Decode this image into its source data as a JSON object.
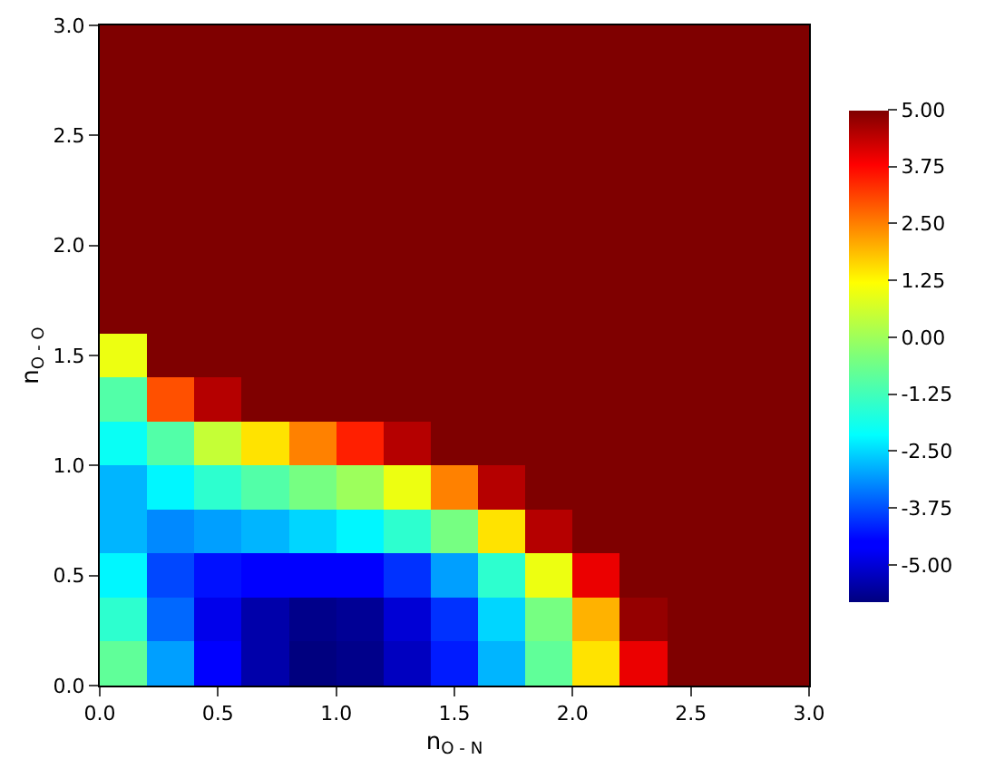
{
  "chart_data": {
    "type": "heatmap",
    "xlabel": "n$_{O - N}$",
    "ylabel": "n$_{O - O}$",
    "x": [
      0.1,
      0.3,
      0.5,
      0.7,
      0.9,
      1.1,
      1.3,
      1.5,
      1.7,
      1.9,
      2.1,
      2.3,
      2.5,
      2.7,
      2.9
    ],
    "y": [
      2.9,
      2.7,
      2.5,
      2.3,
      2.1,
      1.9,
      1.7,
      1.5,
      1.3,
      1.1,
      0.9,
      0.7,
      0.5,
      0.3,
      0.1
    ],
    "cells": [
      [
        5,
        5,
        5,
        5,
        5,
        5,
        5,
        5,
        5,
        5,
        5,
        5,
        5,
        5,
        5
      ],
      [
        5,
        5,
        5,
        5,
        5,
        5,
        5,
        5,
        5,
        5,
        5,
        5,
        5,
        5,
        5
      ],
      [
        5,
        5,
        5,
        5,
        5,
        5,
        5,
        5,
        5,
        5,
        5,
        5,
        5,
        5,
        5
      ],
      [
        5,
        5,
        5,
        5,
        5,
        5,
        5,
        5,
        5,
        5,
        5,
        5,
        5,
        5,
        5
      ],
      [
        5,
        5,
        5,
        5,
        5,
        5,
        5,
        5,
        5,
        5,
        5,
        5,
        5,
        5,
        5
      ],
      [
        5,
        5,
        5,
        5,
        5,
        5,
        5,
        5,
        5,
        5,
        5,
        5,
        5,
        5,
        5
      ],
      [
        5,
        5,
        5,
        5,
        5,
        5,
        5,
        5,
        5,
        5,
        5,
        5,
        5,
        5,
        5
      ],
      [
        1.0,
        5,
        5,
        5,
        5,
        5,
        5,
        5,
        5,
        5,
        5,
        5,
        5,
        5,
        5
      ],
      [
        -1.0,
        3.0,
        4.5,
        5,
        5,
        5,
        5,
        5,
        5,
        5,
        5,
        5,
        5,
        5,
        5
      ],
      [
        -2.0,
        -1.0,
        0.5,
        1.5,
        2.5,
        3.5,
        4.5,
        5,
        5,
        5,
        5,
        5,
        5,
        5,
        5
      ],
      [
        -2.8,
        -2.2,
        -1.5,
        -1.0,
        -0.5,
        0.0,
        1.0,
        2.5,
        4.5,
        5,
        5,
        5,
        5,
        5,
        5
      ],
      [
        -2.8,
        -3.2,
        -3.0,
        -2.8,
        -2.5,
        -2.2,
        -1.5,
        -0.5,
        1.5,
        4.5,
        5,
        5,
        5,
        5,
        5
      ],
      [
        -2.2,
        -3.8,
        -4.3,
        -4.6,
        -4.6,
        -4.5,
        -4.0,
        -3.0,
        -1.5,
        1.0,
        4.0,
        5,
        5,
        5,
        5
      ],
      [
        -1.5,
        -3.5,
        -4.8,
        -5.4,
        -5.7,
        -5.6,
        -5.0,
        -4.0,
        -2.5,
        -0.5,
        2.0,
        4.8,
        5,
        5,
        5
      ],
      [
        -0.8,
        -3.0,
        -4.6,
        -5.4,
        -5.8,
        -5.7,
        -5.2,
        -4.2,
        -2.8,
        -0.8,
        1.5,
        4.0,
        5,
        5,
        5
      ]
    ],
    "xlim": [
      0,
      3
    ],
    "ylim": [
      0,
      3
    ],
    "xticks": [
      {
        "value": 0,
        "label": "0.0"
      },
      {
        "value": 0.5,
        "label": "0.5"
      },
      {
        "value": 1,
        "label": "1.0"
      },
      {
        "value": 1.5,
        "label": "1.5"
      },
      {
        "value": 2,
        "label": "2.0"
      },
      {
        "value": 2.5,
        "label": "2.5"
      },
      {
        "value": 3,
        "label": "3.0"
      }
    ],
    "yticks": [
      {
        "value": 0,
        "label": "0.0"
      },
      {
        "value": 0.5,
        "label": "0.5"
      },
      {
        "value": 1,
        "label": "1.0"
      },
      {
        "value": 1.5,
        "label": "1.5"
      },
      {
        "value": 2,
        "label": "2.0"
      },
      {
        "value": 2.5,
        "label": "2.5"
      },
      {
        "value": 3,
        "label": "3.0"
      }
    ],
    "clim": [
      -5.8,
      5
    ],
    "cticks": [
      {
        "value": 5,
        "label": "5.00"
      },
      {
        "value": 3.75,
        "label": "3.75"
      },
      {
        "value": 2.5,
        "label": "2.50"
      },
      {
        "value": 1.25,
        "label": "1.25"
      },
      {
        "value": 0,
        "label": "0.00"
      },
      {
        "value": -1.25,
        "label": "-1.25"
      },
      {
        "value": -2.5,
        "label": "-2.50"
      },
      {
        "value": -3.75,
        "label": "-3.75"
      },
      {
        "value": -5,
        "label": "-5.00"
      }
    ]
  }
}
